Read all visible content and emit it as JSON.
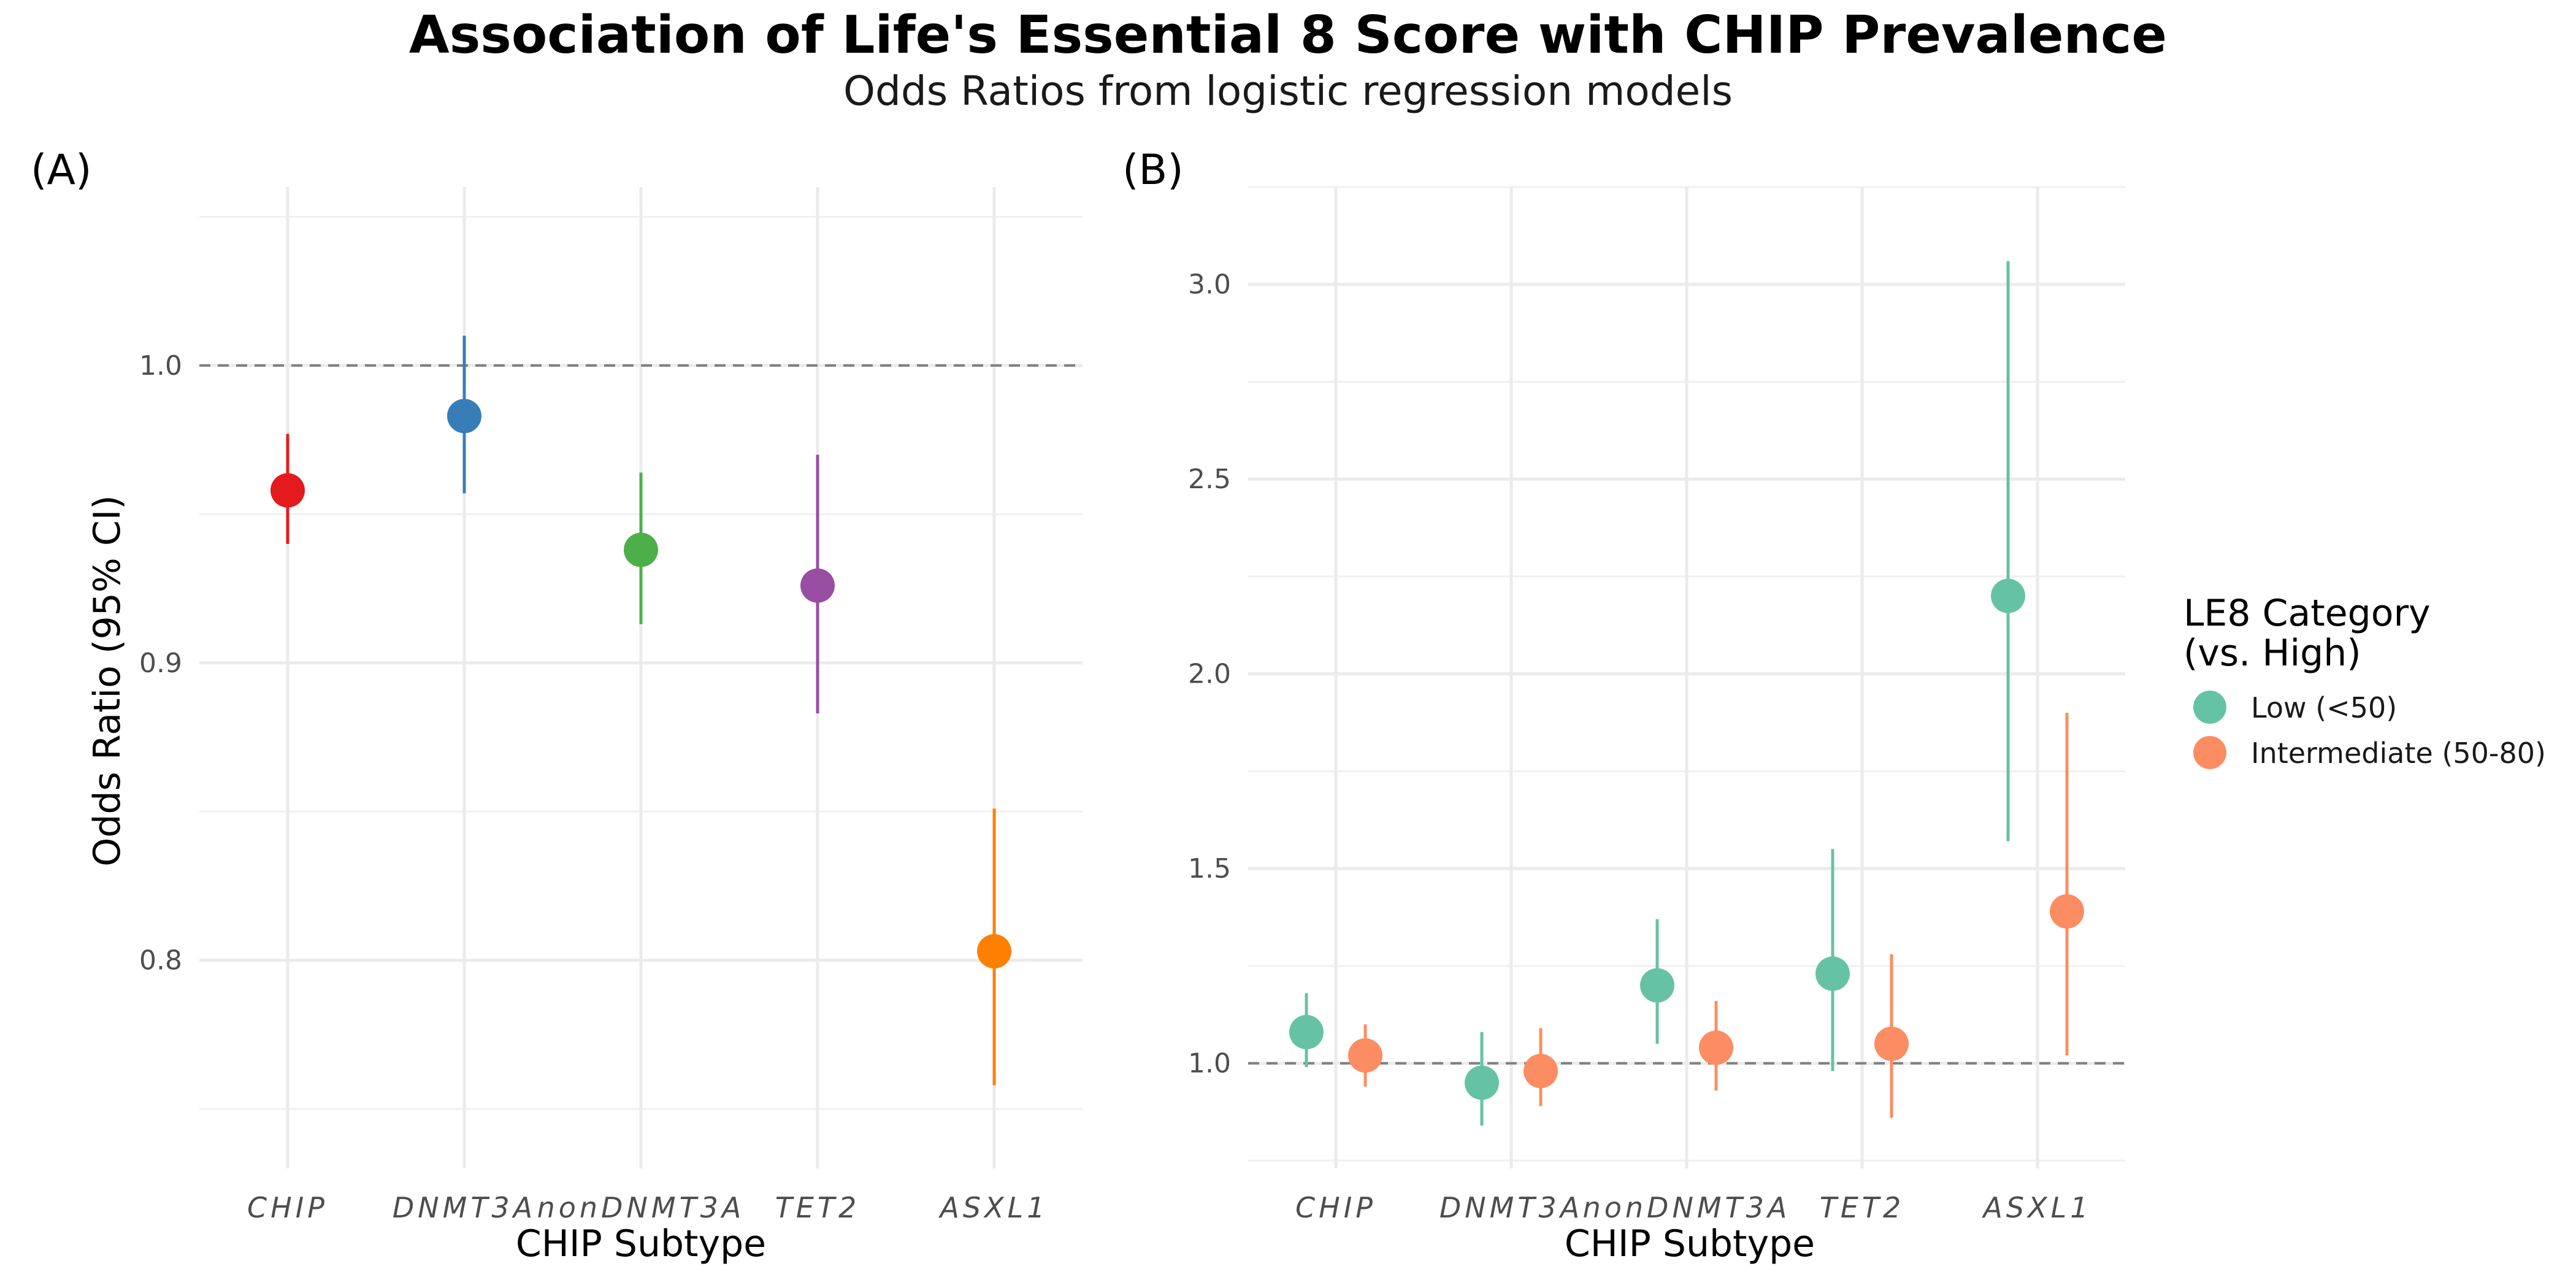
{
  "figure": {
    "title": "Association of Life's Essential 8 Score with CHIP Prevalence",
    "subtitle": "Odds Ratios from logistic regression models"
  },
  "chart_data": [
    {
      "panel": "(A)",
      "type": "scatter",
      "subtype": "point-range",
      "xlabel": "CHIP Subtype",
      "ylabel": "Odds Ratio (95% CI)",
      "categories": [
        "CHIP",
        "DNMT3A",
        "nonDNMT3A",
        "TET2",
        "ASXL1"
      ],
      "estimates": [
        0.958,
        0.983,
        0.938,
        0.926,
        0.803
      ],
      "ci_lower": [
        0.94,
        0.957,
        0.913,
        0.883,
        0.758
      ],
      "ci_upper": [
        0.977,
        1.01,
        0.964,
        0.97,
        0.851
      ],
      "colors": [
        "#E41A1C",
        "#377EB8",
        "#4DAF4A",
        "#984EA3",
        "#FF7F00"
      ],
      "ylim": [
        0.73,
        1.06
      ],
      "yticks": [
        0.8,
        0.9,
        1.0
      ],
      "ytick_labels": [
        "0.8",
        "0.9",
        "1.0"
      ],
      "reference_line": 1.0,
      "grid": true,
      "legend": "none"
    },
    {
      "panel": "(B)",
      "type": "scatter",
      "subtype": "point-range-dodged",
      "xlabel": "CHIP Subtype",
      "ylabel": "",
      "categories": [
        "CHIP",
        "DNMT3A",
        "nonDNMT3A",
        "TET2",
        "ASXL1"
      ],
      "series": [
        {
          "name": "Low (<50)",
          "color": "#66C2A5",
          "estimates": [
            1.08,
            0.95,
            1.2,
            1.23,
            2.2
          ],
          "ci_lower": [
            0.99,
            0.84,
            1.05,
            0.98,
            1.57
          ],
          "ci_upper": [
            1.18,
            1.08,
            1.37,
            1.55,
            3.06
          ]
        },
        {
          "name": "Intermediate (50-80)",
          "color": "#FC8D62",
          "estimates": [
            1.02,
            0.98,
            1.04,
            1.05,
            1.39
          ],
          "ci_lower": [
            0.94,
            0.89,
            0.93,
            0.86,
            1.02
          ],
          "ci_upper": [
            1.1,
            1.09,
            1.16,
            1.28,
            1.9
          ]
        }
      ],
      "ylim": [
        0.73,
        3.25
      ],
      "yticks": [
        1.0,
        1.5,
        2.0,
        2.5,
        3.0
      ],
      "ytick_labels": [
        "1.0",
        "1.5",
        "2.0",
        "2.5",
        "3.0"
      ],
      "reference_line": 1.0,
      "grid": true,
      "legend": "right",
      "legend_title": [
        "LE8 Category",
        "(vs. High)"
      ]
    }
  ]
}
